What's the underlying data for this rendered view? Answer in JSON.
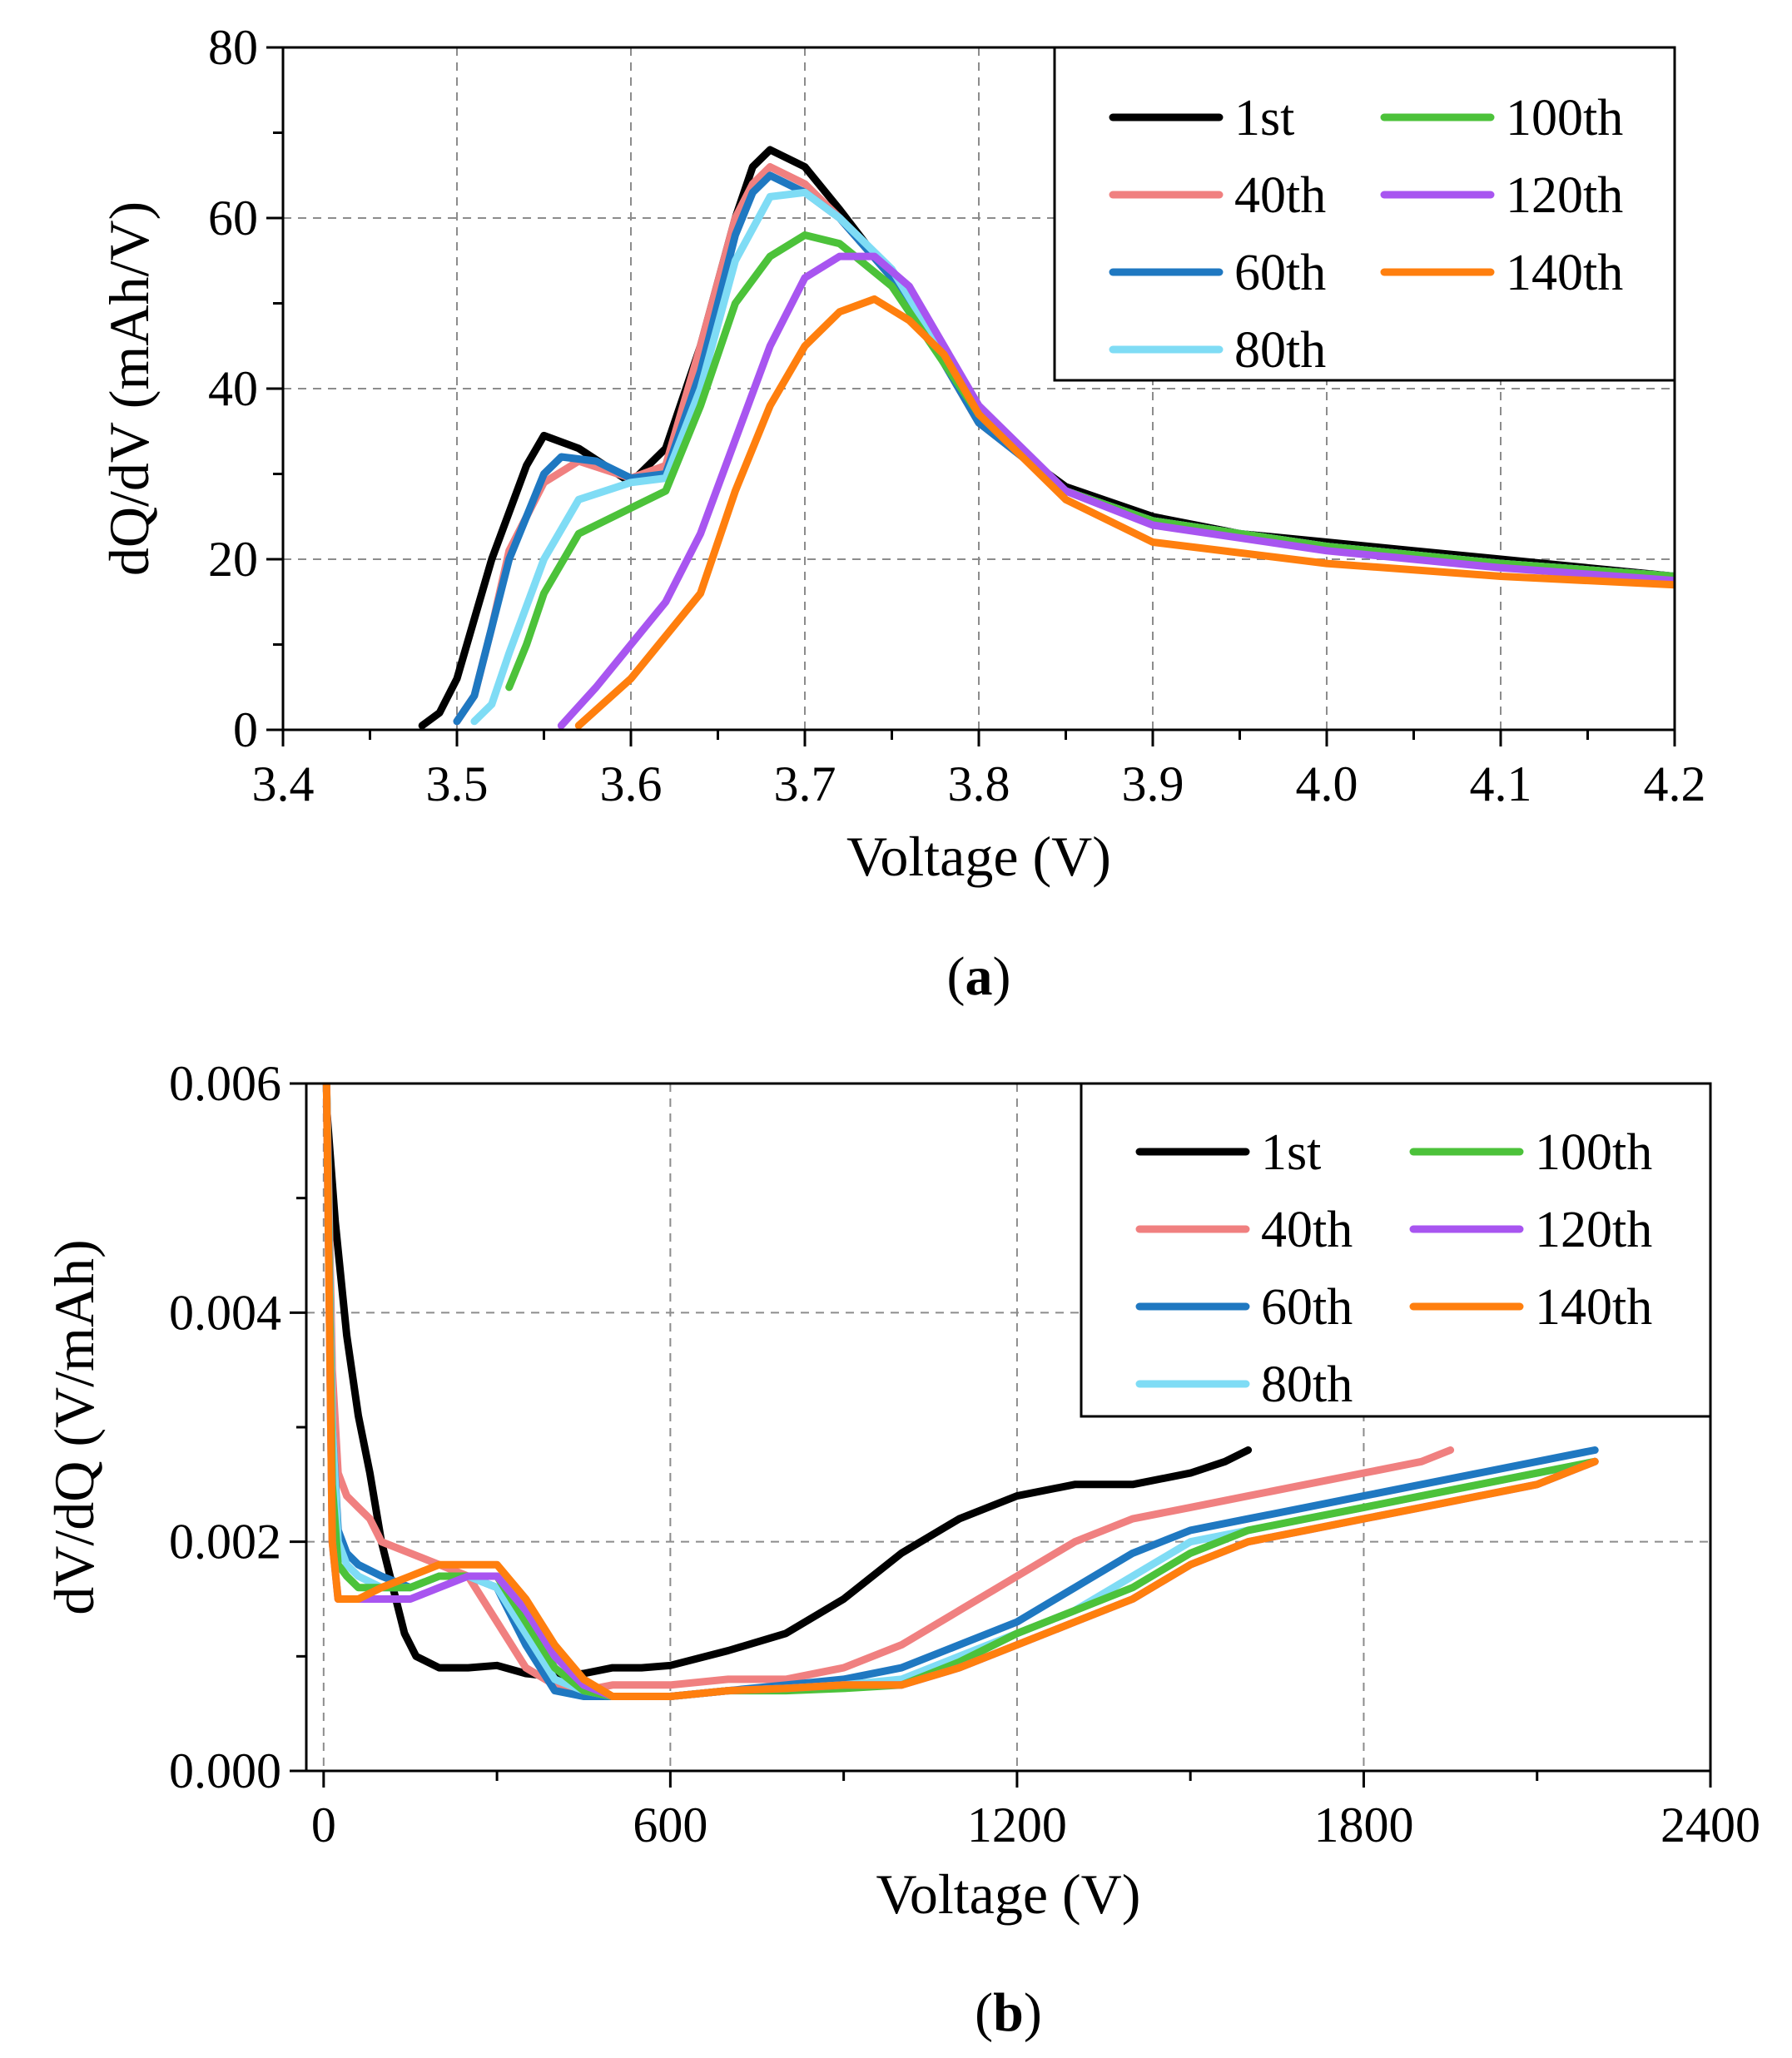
{
  "chart_data": [
    {
      "type": "line",
      "panel_label": "a",
      "caption": {
        "open": "(",
        "letter": "a",
        "close": ")"
      },
      "xlabel": "Voltage (V)",
      "ylabel": "dQ/dV (mAh/V)",
      "xlim": [
        3.4,
        4.2
      ],
      "ylim": [
        0,
        80
      ],
      "xticks": [
        3.4,
        3.5,
        3.6,
        3.7,
        3.8,
        3.9,
        4.0,
        4.1,
        4.2
      ],
      "xtick_labels": [
        "3.4",
        "3.5",
        "3.6",
        "3.7",
        "3.8",
        "3.9",
        "4.0",
        "4.1",
        "4.2"
      ],
      "yticks": [
        0,
        20,
        40,
        60,
        80
      ],
      "ytick_labels": [
        "0",
        "20",
        "40",
        "60",
        "80"
      ],
      "grid": true,
      "legend_position": "top-right",
      "series": [
        {
          "name": "1st",
          "color": "#000000",
          "x": [
            3.48,
            3.49,
            3.5,
            3.52,
            3.54,
            3.55,
            3.57,
            3.6,
            3.62,
            3.64,
            3.66,
            3.67,
            3.68,
            3.7,
            3.72,
            3.75,
            3.78,
            3.8,
            3.85,
            3.9,
            3.95,
            4.0,
            4.05,
            4.1,
            4.15,
            4.2
          ],
          "y": [
            0.5,
            2,
            6,
            20,
            31,
            34.5,
            33,
            29,
            33,
            45,
            60,
            66,
            68,
            66,
            61,
            53,
            43,
            36,
            28.5,
            25,
            23,
            22,
            21,
            20,
            19,
            18
          ]
        },
        {
          "name": "40th",
          "color": "#f08080",
          "x": [
            3.5,
            3.51,
            3.52,
            3.53,
            3.55,
            3.57,
            3.6,
            3.62,
            3.64,
            3.66,
            3.67,
            3.68,
            3.7,
            3.72,
            3.75,
            3.78,
            3.8,
            3.85,
            3.9,
            4.0,
            4.1,
            4.2
          ],
          "y": [
            1,
            4,
            12,
            21,
            29,
            31.5,
            29.5,
            31,
            45,
            60,
            64,
            66,
            64,
            60,
            53,
            43,
            36,
            28,
            24.5,
            21.5,
            19.5,
            18
          ]
        },
        {
          "name": "60th",
          "color": "#1f78c1",
          "x": [
            3.5,
            3.51,
            3.52,
            3.53,
            3.55,
            3.56,
            3.58,
            3.6,
            3.62,
            3.64,
            3.66,
            3.67,
            3.68,
            3.7,
            3.72,
            3.75,
            3.78,
            3.8,
            3.85,
            3.9,
            4.0,
            4.1,
            4.2
          ],
          "y": [
            1,
            4,
            12,
            20,
            30,
            32,
            31.5,
            29.5,
            30,
            42,
            58,
            63,
            65,
            63,
            60,
            53,
            43,
            36,
            28,
            24.5,
            21.5,
            19.5,
            18
          ]
        },
        {
          "name": "80th",
          "color": "#7fdcf5",
          "x": [
            3.51,
            3.52,
            3.53,
            3.55,
            3.57,
            3.6,
            3.62,
            3.64,
            3.66,
            3.68,
            3.7,
            3.72,
            3.75,
            3.78,
            3.8,
            3.85,
            3.9,
            4.0,
            4.1,
            4.2
          ],
          "y": [
            1,
            3,
            9,
            20,
            27,
            29,
            29.5,
            40,
            55,
            62.5,
            63,
            60,
            54,
            44,
            37,
            28,
            24.5,
            21.5,
            19.5,
            18
          ]
        },
        {
          "name": "100th",
          "color": "#4cc23a",
          "x": [
            3.53,
            3.54,
            3.55,
            3.57,
            3.6,
            3.62,
            3.64,
            3.66,
            3.68,
            3.7,
            3.72,
            3.75,
            3.78,
            3.8,
            3.85,
            3.9,
            4.0,
            4.1,
            4.2
          ],
          "y": [
            5,
            10,
            16,
            23,
            26,
            28,
            38,
            50,
            55.5,
            58,
            57,
            52,
            43,
            37,
            28,
            24.5,
            21.5,
            19.5,
            18
          ]
        },
        {
          "name": "120th",
          "color": "#a855f0",
          "x": [
            3.56,
            3.58,
            3.6,
            3.62,
            3.64,
            3.66,
            3.68,
            3.7,
            3.72,
            3.74,
            3.76,
            3.78,
            3.8,
            3.85,
            3.9,
            4.0,
            4.1,
            4.2
          ],
          "y": [
            0.5,
            5,
            10,
            15,
            23,
            34,
            45,
            53,
            55.5,
            55.5,
            52,
            45,
            38,
            28,
            24,
            21,
            19,
            17.5
          ]
        },
        {
          "name": "140th",
          "color": "#ff7f0e",
          "x": [
            3.57,
            3.6,
            3.62,
            3.64,
            3.66,
            3.68,
            3.7,
            3.72,
            3.74,
            3.76,
            3.78,
            3.8,
            3.85,
            3.9,
            4.0,
            4.1,
            4.2
          ],
          "y": [
            0.5,
            6,
            11,
            16,
            28,
            38,
            45,
            49,
            50.5,
            48,
            44,
            37,
            27,
            22,
            19.5,
            18,
            17
          ]
        }
      ]
    },
    {
      "type": "line",
      "panel_label": "b",
      "caption": {
        "open": "(",
        "letter": "b",
        "close": ")"
      },
      "xlabel": "Voltage (V)",
      "ylabel": "dV/dQ (V/mAh)",
      "xlim": [
        -30,
        2400
      ],
      "ylim": [
        0,
        0.006
      ],
      "xticks": [
        0,
        600,
        1200,
        1800,
        2400
      ],
      "xtick_labels": [
        "0",
        "600",
        "1200",
        "1800",
        "2400"
      ],
      "yticks": [
        0,
        0.002,
        0.004,
        0.006
      ],
      "ytick_labels": [
        "0.000",
        "0.002",
        "0.004",
        "0.006"
      ],
      "grid": true,
      "legend_position": "top-right",
      "series": [
        {
          "name": "1st",
          "color": "#000000",
          "x": [
            5,
            20,
            40,
            60,
            80,
            100,
            120,
            140,
            160,
            200,
            250,
            300,
            350,
            400,
            450,
            500,
            550,
            600,
            700,
            800,
            900,
            1000,
            1100,
            1200,
            1300,
            1400,
            1500,
            1560,
            1600
          ],
          "y": [
            0.0058,
            0.0048,
            0.0038,
            0.0031,
            0.0026,
            0.002,
            0.0016,
            0.0012,
            0.001,
            0.0009,
            0.0009,
            0.00092,
            0.00085,
            0.00082,
            0.00085,
            0.0009,
            0.0009,
            0.00092,
            0.00105,
            0.0012,
            0.0015,
            0.0019,
            0.0022,
            0.0024,
            0.0025,
            0.0025,
            0.0026,
            0.0027,
            0.0028
          ]
        },
        {
          "name": "40th",
          "color": "#f08080",
          "x": [
            5,
            15,
            25,
            40,
            60,
            80,
            100,
            150,
            200,
            250,
            300,
            350,
            400,
            450,
            500,
            600,
            700,
            800,
            900,
            1000,
            1100,
            1200,
            1300,
            1400,
            1500,
            1600,
            1700,
            1800,
            1900,
            1950
          ],
          "y": [
            0.006,
            0.0035,
            0.0026,
            0.0024,
            0.0023,
            0.0022,
            0.002,
            0.0019,
            0.0018,
            0.0017,
            0.0013,
            0.0009,
            0.00075,
            0.0007,
            0.00075,
            0.00075,
            0.0008,
            0.0008,
            0.0009,
            0.0011,
            0.0014,
            0.0017,
            0.002,
            0.0022,
            0.0023,
            0.0024,
            0.0025,
            0.0026,
            0.0027,
            0.0028
          ]
        },
        {
          "name": "60th",
          "color": "#1f78c1",
          "x": [
            5,
            15,
            25,
            40,
            60,
            100,
            150,
            200,
            250,
            300,
            350,
            400,
            450,
            500,
            600,
            700,
            800,
            900,
            1000,
            1100,
            1200,
            1300,
            1400,
            1500,
            1600,
            1700,
            1800,
            1900,
            2000,
            2100,
            2200
          ],
          "y": [
            0.006,
            0.003,
            0.0021,
            0.0019,
            0.0018,
            0.0017,
            0.0016,
            0.0017,
            0.0017,
            0.0016,
            0.0011,
            0.0007,
            0.00065,
            0.00065,
            0.00065,
            0.0007,
            0.00075,
            0.0008,
            0.0009,
            0.0011,
            0.0013,
            0.0016,
            0.0019,
            0.0021,
            0.0022,
            0.0023,
            0.0024,
            0.0025,
            0.0026,
            0.0027,
            0.0028
          ]
        },
        {
          "name": "80th",
          "color": "#7fdcf5",
          "x": [
            5,
            15,
            25,
            40,
            60,
            100,
            150,
            200,
            250,
            300,
            350,
            400,
            450,
            500,
            600,
            700,
            800,
            900,
            1000,
            1100,
            1200,
            1300,
            1400,
            1500,
            1600,
            1700,
            1800,
            1900,
            2000,
            2100,
            2200
          ],
          "y": [
            0.006,
            0.003,
            0.002,
            0.0018,
            0.0017,
            0.0016,
            0.0016,
            0.0017,
            0.0017,
            0.0016,
            0.0012,
            0.0008,
            0.0007,
            0.00065,
            0.00065,
            0.0007,
            0.00072,
            0.00075,
            0.0008,
            0.001,
            0.0012,
            0.0014,
            0.0017,
            0.002,
            0.0021,
            0.0022,
            0.0023,
            0.0024,
            0.0025,
            0.0026,
            0.0027
          ]
        },
        {
          "name": "100th",
          "color": "#4cc23a",
          "x": [
            5,
            15,
            25,
            40,
            60,
            100,
            150,
            200,
            250,
            300,
            350,
            400,
            450,
            500,
            600,
            700,
            800,
            900,
            1000,
            1100,
            1200,
            1300,
            1400,
            1500,
            1600,
            1700,
            1800,
            1900,
            2000,
            2100,
            2200
          ],
          "y": [
            0.006,
            0.0025,
            0.0018,
            0.0017,
            0.0016,
            0.0016,
            0.0016,
            0.0017,
            0.0017,
            0.0017,
            0.0013,
            0.0009,
            0.0007,
            0.00065,
            0.00065,
            0.0007,
            0.0007,
            0.00072,
            0.00075,
            0.00095,
            0.0012,
            0.0014,
            0.0016,
            0.0019,
            0.0021,
            0.0022,
            0.0023,
            0.0024,
            0.0025,
            0.0026,
            0.0027
          ]
        },
        {
          "name": "120th",
          "color": "#a855f0",
          "x": [
            5,
            15,
            25,
            40,
            60,
            100,
            150,
            200,
            250,
            300,
            350,
            400,
            450,
            500,
            600,
            700,
            800,
            900,
            1000,
            1100,
            1200,
            1300,
            1400,
            1500,
            1600,
            1700,
            1800,
            1900,
            2000,
            2100,
            2200
          ],
          "y": [
            0.006,
            0.002,
            0.0015,
            0.0015,
            0.0015,
            0.0015,
            0.0015,
            0.0016,
            0.0017,
            0.0017,
            0.0014,
            0.001,
            0.00075,
            0.00065,
            0.00065,
            0.0007,
            0.00072,
            0.00075,
            0.00075,
            0.0009,
            0.0011,
            0.0013,
            0.0015,
            0.0018,
            0.002,
            0.0021,
            0.0022,
            0.0023,
            0.0024,
            0.0025,
            0.0027
          ]
        },
        {
          "name": "140th",
          "color": "#ff7f0e",
          "x": [
            5,
            15,
            25,
            40,
            60,
            100,
            150,
            200,
            250,
            300,
            350,
            400,
            450,
            500,
            600,
            700,
            800,
            900,
            1000,
            1100,
            1200,
            1300,
            1400,
            1500,
            1600,
            1700,
            1800,
            1900,
            2000,
            2100,
            2200
          ],
          "y": [
            0.006,
            0.002,
            0.0015,
            0.0015,
            0.0015,
            0.0016,
            0.0017,
            0.0018,
            0.0018,
            0.0018,
            0.0015,
            0.0011,
            0.0008,
            0.00065,
            0.00065,
            0.0007,
            0.00072,
            0.00075,
            0.00075,
            0.0009,
            0.0011,
            0.0013,
            0.0015,
            0.0018,
            0.002,
            0.0021,
            0.0022,
            0.0023,
            0.0024,
            0.0025,
            0.0027
          ]
        }
      ]
    }
  ]
}
